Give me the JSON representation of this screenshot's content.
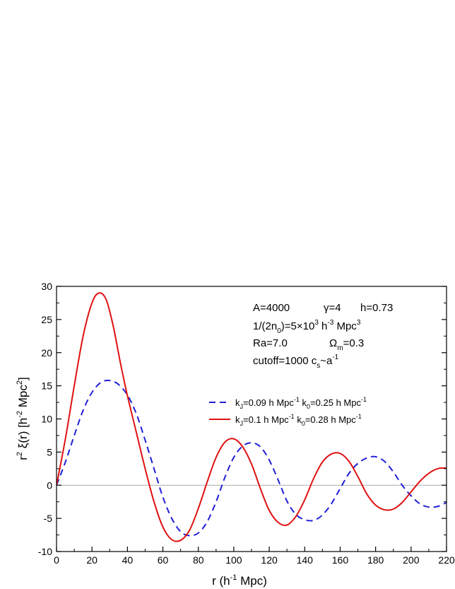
{
  "chart_data": {
    "type": "line",
    "xlim": [
      0,
      220
    ],
    "ylim": [
      -10,
      30
    ],
    "xticks": [
      0,
      20,
      40,
      60,
      80,
      100,
      120,
      140,
      160,
      180,
      200,
      220
    ],
    "yticks": [
      -10,
      -5,
      0,
      5,
      10,
      15,
      20,
      25,
      30
    ],
    "xlabel": {
      "base": "r (h",
      "sup": "-1",
      "tail": " Mpc)"
    },
    "ylabel": {
      "pre": "r",
      "sup1": "2",
      "mid": " ξ(r)  [h",
      "sup2": "-2",
      "mid2": " Mpc",
      "sup3": "2",
      "post": "]"
    },
    "zero_line": true,
    "annotations": {
      "line1": {
        "a": "A=4000",
        "b": "γ=4",
        "c": "h=0.73"
      },
      "line2": {
        "pre": "1/(2n",
        "sub": "0",
        "mid": ")=5×10",
        "sup1": "3",
        "mid2": " h",
        "sup2": "-3",
        "mid3": " Mpc",
        "sup3": "3"
      },
      "line3": {
        "a": "Ra=7.0",
        "b_pre": "Ω",
        "b_sub": "m",
        "b_post": "=0.3"
      },
      "line4": {
        "a": "cutoff=1000  c",
        "sub": "s",
        "post": "~a",
        "sup": "-1"
      }
    },
    "series": [
      {
        "name": {
          "pre": "k",
          "sub1": "J",
          "mid": "=0.09 h Mpc",
          "sup1": "-1",
          "mid2": " k",
          "sub2": "0",
          "mid3": "=0.25 h Mpc",
          "sup2": "-1"
        },
        "color": "#1f1fd6",
        "dash": "dashed",
        "x": [
          0,
          5,
          10,
          15,
          20,
          25,
          30,
          35,
          40,
          45,
          50,
          55,
          60,
          65,
          70,
          75,
          80,
          85,
          90,
          95,
          100,
          105,
          110,
          115,
          120,
          125,
          130,
          135,
          140,
          145,
          150,
          155,
          160,
          165,
          170,
          175,
          180,
          185,
          190,
          195,
          200,
          205,
          210,
          215,
          220
        ],
        "y": [
          0,
          3.5,
          7.5,
          11.3,
          14.0,
          15.5,
          15.8,
          15.2,
          13.6,
          10.8,
          6.8,
          2.5,
          -1.8,
          -5.0,
          -7.0,
          -7.6,
          -7.2,
          -5.5,
          -2.5,
          1.2,
          4.2,
          5.9,
          6.4,
          5.8,
          3.8,
          0.8,
          -2.4,
          -4.4,
          -5.2,
          -5.3,
          -4.5,
          -2.8,
          -0.5,
          1.8,
          3.3,
          4.1,
          4.3,
          3.6,
          2.0,
          0,
          -1.6,
          -2.8,
          -3.3,
          -3.2,
          -2.6
        ]
      },
      {
        "name": {
          "pre": "k",
          "sub1": "J",
          "mid": "=0.1 h Mpc",
          "sup1": "-1",
          "mid2": " k",
          "sub2": "0",
          "mid3": "=0.28 h Mpc",
          "sup2": "-1"
        },
        "color": "#e01010",
        "dash": "solid",
        "x": [
          0,
          5,
          10,
          15,
          20,
          24,
          28,
          32,
          36,
          40,
          45,
          50,
          55,
          60,
          65,
          70,
          75,
          80,
          85,
          90,
          95,
          100,
          105,
          110,
          115,
          120,
          125,
          130,
          135,
          140,
          145,
          150,
          155,
          160,
          165,
          170,
          175,
          180,
          185,
          190,
          195,
          200,
          205,
          210,
          215,
          220
        ],
        "y": [
          0,
          7.0,
          15.0,
          22.5,
          27.5,
          29.0,
          28.0,
          24.0,
          18.5,
          13.5,
          8.0,
          2.5,
          -2.5,
          -6.3,
          -8.2,
          -8.3,
          -6.8,
          -3.5,
          0.5,
          4.2,
          6.5,
          7.0,
          5.8,
          3.2,
          -0.5,
          -3.8,
          -5.6,
          -6.0,
          -4.7,
          -2.2,
          1.0,
          3.5,
          4.7,
          4.8,
          3.6,
          1.3,
          -1.3,
          -3.0,
          -3.7,
          -3.6,
          -2.6,
          -1.0,
          0.6,
          1.8,
          2.5,
          2.6
        ]
      }
    ]
  }
}
